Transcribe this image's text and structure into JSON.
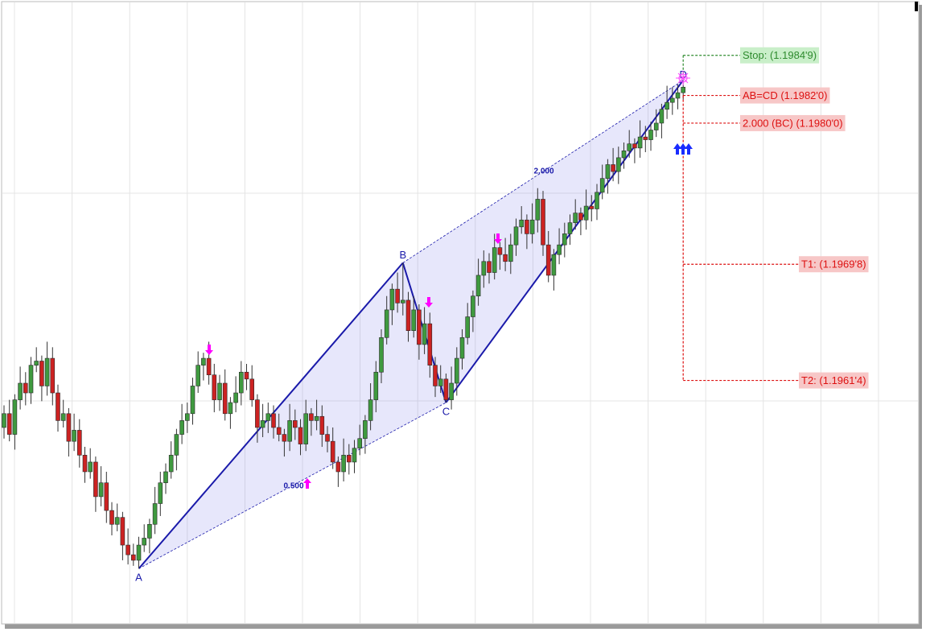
{
  "chart_data": {
    "type": "candlestick",
    "ylim": [
      1.19438,
      1.19889
    ],
    "up_color": "#3f9a3f",
    "down_color": "#cc2222",
    "open": [
      1.1958,
      1.1959,
      1.19575,
      1.196,
      1.19612,
      1.19605,
      1.19625,
      1.19628,
      1.1961,
      1.1963,
      1.19605,
      1.19585,
      1.1959,
      1.1957,
      1.19578,
      1.1956,
      1.19548,
      1.19555,
      1.1953,
      1.1954,
      1.1952,
      1.1951,
      1.19515,
      1.19495,
      1.19488,
      1.19484,
      1.19495,
      1.195,
      1.1951,
      1.19525,
      1.1954,
      1.19548,
      1.1956,
      1.19575,
      1.19585,
      1.1959,
      1.1961,
      1.19625,
      1.1963,
      1.19618,
      1.196,
      1.19612,
      1.1959,
      1.19598,
      1.19605,
      1.1962,
      1.19615,
      1.196,
      1.1958,
      1.19585,
      1.1959,
      1.1958,
      1.19575,
      1.1957,
      1.19585,
      1.1958,
      1.19568,
      1.1959,
      1.19585,
      1.19588,
      1.19575,
      1.1957,
      1.19555,
      1.19548,
      1.1956,
      1.19555,
      1.19565,
      1.19572,
      1.19585,
      1.196,
      1.1962,
      1.19645,
      1.19665,
      1.1968,
      1.1967,
      1.19672,
      1.1965,
      1.19665,
      1.1964,
      1.19655,
      1.19625,
      1.1961,
      1.19615,
      1.196,
      1.19612,
      1.1963,
      1.19645,
      1.1966,
      1.19675,
      1.1969,
      1.197,
      1.19692,
      1.1971,
      1.19705,
      1.197,
      1.19712,
      1.19725,
      1.1973,
      1.1972,
      1.1973,
      1.19745,
      1.19712,
      1.1969,
      1.19705,
      1.19712,
      1.1972,
      1.19728,
      1.19735,
      1.1973,
      1.1974,
      1.19738,
      1.1975,
      1.1976,
      1.1977,
      1.19765,
      1.19775,
      1.1978,
      1.19785,
      1.19782,
      1.1979,
      1.19788,
      1.19795,
      1.198,
      1.1981,
      1.19815,
      1.19818,
      1.19822
    ],
    "high": [
      1.19596,
      1.196,
      1.19604,
      1.19624,
      1.1962,
      1.19631,
      1.19638,
      1.19632,
      1.19642,
      1.19638,
      1.19611,
      1.196,
      1.19594,
      1.1959,
      1.19586,
      1.19566,
      1.19565,
      1.19559,
      1.19552,
      1.19548,
      1.19526,
      1.19525,
      1.19519,
      1.19507,
      1.19496,
      1.19501,
      1.1951,
      1.19514,
      1.19537,
      1.19548,
      1.19554,
      1.1957,
      1.19579,
      1.19597,
      1.19598,
      1.19616,
      1.19635,
      1.19634,
      1.19642,
      1.19626,
      1.19618,
      1.19622,
      1.19602,
      1.19617,
      1.19628,
      1.19626,
      1.19625,
      1.19604,
      1.19597,
      1.19598,
      1.19596,
      1.1959,
      1.19579,
      1.19597,
      1.19593,
      1.19586,
      1.196,
      1.19594,
      1.196,
      1.19596,
      1.19581,
      1.1958,
      1.19559,
      1.19572,
      1.19568,
      1.19571,
      1.19582,
      1.19589,
      1.19612,
      1.19628,
      1.19651,
      1.19675,
      1.19684,
      1.19692,
      1.19699,
      1.19678,
      1.19675,
      1.19669,
      1.19667,
      1.19663,
      1.19631,
      1.19625,
      1.19619,
      1.19624,
      1.19638,
      1.19651,
      1.1967,
      1.19679,
      1.19702,
      1.19708,
      1.19706,
      1.1972,
      1.19714,
      1.19717,
      1.1972,
      1.19731,
      1.1974,
      1.19734,
      1.19742,
      1.19753,
      1.19751,
      1.19722,
      1.19709,
      1.19724,
      1.19728,
      1.19734,
      1.19745,
      1.19739,
      1.19752,
      1.19748,
      1.19756,
      1.1977,
      1.19774,
      1.19782,
      1.19783,
      1.19786,
      1.19795,
      1.19789,
      1.19802,
      1.19798,
      1.19801,
      1.1981,
      1.19814,
      1.19827,
      1.19826,
      1.19828,
      1.19831
    ],
    "low": [
      1.19572,
      1.1957,
      1.19564,
      1.19593,
      1.19596,
      1.19597,
      1.1962,
      1.19599,
      1.19603,
      1.19596,
      1.19577,
      1.1958,
      1.19559,
      1.19563,
      1.19551,
      1.1954,
      1.19543,
      1.19519,
      1.19523,
      1.19511,
      1.19502,
      1.19505,
      1.19484,
      1.19481,
      1.1948,
      1.19478,
      1.1949,
      1.19489,
      1.19503,
      1.19516,
      1.19532,
      1.19543,
      1.19549,
      1.19568,
      1.19576,
      1.19582,
      1.19605,
      1.19614,
      1.19611,
      1.19591,
      1.19592,
      1.19585,
      1.19579,
      1.19591,
      1.19596,
      1.19607,
      1.19595,
      1.19569,
      1.19573,
      1.19576,
      1.19572,
      1.1957,
      1.19559,
      1.19563,
      1.19571,
      1.1956,
      1.19563,
      1.19574,
      1.19578,
      1.19566,
      1.19562,
      1.1955,
      1.19537,
      1.19541,
      1.19546,
      1.19547,
      1.1956,
      1.19561,
      1.19578,
      1.19591,
      1.19612,
      1.1964,
      1.19654,
      1.19663,
      1.19661,
      1.19642,
      1.19645,
      1.19629,
      1.19633,
      1.19616,
      1.19602,
      1.19605,
      1.19598,
      1.19593,
      1.19603,
      1.19622,
      1.1964,
      1.19649,
      1.19668,
      1.19681,
      1.19684,
      1.19687,
      1.19694,
      1.19693,
      1.19691,
      1.19704,
      1.1972,
      1.19709,
      1.19713,
      1.19721,
      1.19704,
      1.19685,
      1.19679,
      1.19698,
      1.19703,
      1.19712,
      1.19723,
      1.19719,
      1.19723,
      1.19729,
      1.1973,
      1.19745,
      1.19749,
      1.19758,
      1.19756,
      1.19767,
      1.19775,
      1.19771,
      1.19775,
      1.19779,
      1.1978,
      1.1979,
      1.19789,
      1.19803,
      1.19806,
      1.1981,
      1.19817
    ],
    "close": [
      1.1959,
      1.19575,
      1.196,
      1.19612,
      1.19605,
      1.19625,
      1.19628,
      1.1961,
      1.1963,
      1.19605,
      1.19585,
      1.1959,
      1.1957,
      1.19578,
      1.1956,
      1.19548,
      1.19555,
      1.1953,
      1.1954,
      1.1952,
      1.1951,
      1.19515,
      1.19495,
      1.19488,
      1.19484,
      1.19495,
      1.195,
      1.1951,
      1.19525,
      1.1954,
      1.19548,
      1.1956,
      1.19575,
      1.19585,
      1.1959,
      1.1961,
      1.19625,
      1.1963,
      1.19618,
      1.196,
      1.19612,
      1.1959,
      1.19598,
      1.19605,
      1.1962,
      1.19615,
      1.196,
      1.1958,
      1.19585,
      1.1959,
      1.1958,
      1.19575,
      1.1957,
      1.19585,
      1.1958,
      1.19568,
      1.1959,
      1.19585,
      1.19588,
      1.19575,
      1.1957,
      1.19555,
      1.19548,
      1.1956,
      1.19555,
      1.19565,
      1.19572,
      1.19585,
      1.196,
      1.1962,
      1.19645,
      1.19665,
      1.1968,
      1.1967,
      1.19672,
      1.1965,
      1.19665,
      1.1964,
      1.19655,
      1.19625,
      1.1961,
      1.19615,
      1.196,
      1.19612,
      1.1963,
      1.19645,
      1.1966,
      1.19675,
      1.1969,
      1.197,
      1.19692,
      1.1971,
      1.19705,
      1.197,
      1.19712,
      1.19725,
      1.1973,
      1.1972,
      1.1973,
      1.19745,
      1.19712,
      1.1969,
      1.19705,
      1.19712,
      1.1972,
      1.19728,
      1.19735,
      1.1973,
      1.1974,
      1.19738,
      1.1975,
      1.1976,
      1.1977,
      1.19765,
      1.19775,
      1.1978,
      1.19785,
      1.19782,
      1.1979,
      1.19788,
      1.19795,
      1.198,
      1.1981,
      1.19815,
      1.19818,
      1.19822,
      1.19826
    ],
    "pattern": {
      "color": "#1a1aaa",
      "points": [
        {
          "label": "A",
          "index": 25,
          "value": 1.19478
        },
        {
          "label": "B",
          "index": 74,
          "value": 1.19699
        },
        {
          "label": "C",
          "index": 82,
          "value": 1.19598
        },
        {
          "label": "D",
          "index": 126,
          "value": 1.19831
        }
      ],
      "ratios": [
        "2.000",
        "0.500"
      ]
    },
    "levels": [
      {
        "label": "Stop: (1.1984'9)",
        "value": 1.19849,
        "color": "#2e8b2e"
      },
      {
        "label": "AB=CD (1.1982'0)",
        "value": 1.1982,
        "color": "#dd1111"
      },
      {
        "label": "2.000 (BC) (1.1980'0)",
        "value": 1.198,
        "color": "#dd1111"
      },
      {
        "label": "T1: (1.1969'8)",
        "value": 1.19698,
        "color": "#dd1111"
      },
      {
        "label": "T2: (1.1961'4)",
        "value": 1.19614,
        "color": "#dd1111"
      }
    ]
  }
}
